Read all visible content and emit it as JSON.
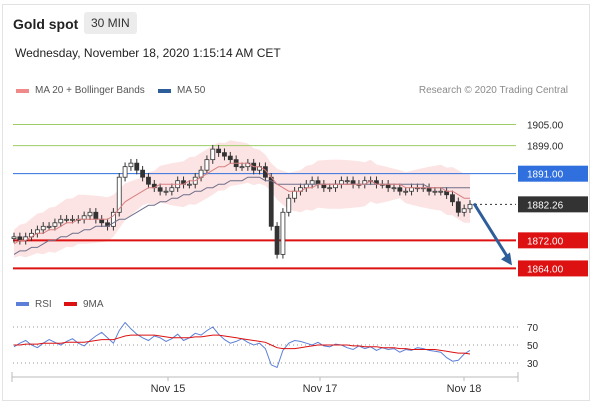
{
  "header": {
    "title": "Gold spot",
    "timeframe": "30 MIN",
    "datetime": "Wednesday, November 18, 2020 1:15:14 AM CET"
  },
  "legend": {
    "items": [
      {
        "label": "MA 20 + Bollinger Bands",
        "color": "#f08a8a"
      },
      {
        "label": "MA 50",
        "color": "#2e5e9a"
      }
    ],
    "credit": "Research © 2020 Trading Central"
  },
  "chart_data": [
    {
      "type": "candlestick",
      "title": "Gold spot",
      "x_tick_labels": [
        "Nov 15",
        "Nov 17",
        "Nov 18"
      ],
      "ylim": [
        1855,
        1912
      ],
      "levels": [
        {
          "value": 1905.0,
          "label": "1905.00",
          "kind": "resistance",
          "color": "#9ccc65"
        },
        {
          "value": 1899.0,
          "label": "1899.00",
          "kind": "resistance",
          "color": "#9ccc65"
        },
        {
          "value": 1891.0,
          "label": "1891.00",
          "kind": "pivot",
          "color": "#2f6fde"
        },
        {
          "value": 1882.26,
          "label": "1882.26",
          "kind": "last-price",
          "color": "#333333"
        },
        {
          "value": 1872.0,
          "label": "1872.00",
          "kind": "support",
          "color": "#dd1111"
        },
        {
          "value": 1864.0,
          "label": "1864.00",
          "kind": "support",
          "color": "#dd1111"
        }
      ],
      "forecast_arrow": {
        "from": 1882.5,
        "to": 1864.0,
        "color": "#2e5e9a"
      },
      "close_series": [
        1873,
        1872,
        1873,
        1874,
        1875,
        1876,
        1876,
        1877,
        1878,
        1878,
        1878,
        1878,
        1879,
        1880,
        1878,
        1877,
        1876,
        1880,
        1890,
        1893,
        1894,
        1892,
        1890,
        1888,
        1887,
        1886,
        1886,
        1887,
        1889,
        1888,
        1888,
        1890,
        1892,
        1895,
        1898,
        1897,
        1896,
        1895,
        1893,
        1893,
        1894,
        1892,
        1893,
        1890,
        1876,
        1868,
        1880,
        1884,
        1886,
        1887,
        1888,
        1889,
        1888,
        1887,
        1887,
        1888,
        1889,
        1889,
        1888,
        1888,
        1889,
        1889,
        1888,
        1888,
        1887,
        1887,
        1886,
        1886,
        1887,
        1887,
        1887,
        1886,
        1886,
        1886,
        1885,
        1883,
        1880,
        1881,
        1882.26
      ],
      "ma20_series": [
        1871,
        1872,
        1872,
        1873,
        1874,
        1874,
        1875,
        1875,
        1876,
        1877,
        1877,
        1878,
        1878,
        1878,
        1878,
        1878,
        1878,
        1879,
        1881,
        1883,
        1884,
        1885,
        1886,
        1887,
        1887,
        1888,
        1888,
        1888,
        1888,
        1888,
        1889,
        1889,
        1890,
        1891,
        1892,
        1893,
        1893,
        1894,
        1894,
        1894,
        1894,
        1893,
        1893,
        1892,
        1890,
        1888,
        1887,
        1886,
        1886,
        1886,
        1887,
        1887,
        1888,
        1888,
        1888,
        1888,
        1888,
        1888,
        1888,
        1888,
        1888,
        1889,
        1888,
        1888,
        1888,
        1888,
        1888,
        1887,
        1887,
        1887,
        1887,
        1887,
        1887,
        1887,
        1886,
        1886,
        1885,
        1884,
        1884
      ],
      "ma50_series": [
        1868,
        1869,
        1869,
        1870,
        1870,
        1871,
        1872,
        1872,
        1873,
        1873,
        1874,
        1874,
        1875,
        1875,
        1876,
        1876,
        1876,
        1877,
        1878,
        1878,
        1879,
        1880,
        1881,
        1882,
        1882,
        1883,
        1883,
        1884,
        1884,
        1885,
        1885,
        1886,
        1886,
        1887,
        1887,
        1888,
        1888,
        1889,
        1889,
        1889,
        1890,
        1890,
        1890,
        1889,
        1889,
        1888,
        1888,
        1888,
        1888,
        1888,
        1888,
        1888,
        1888,
        1888,
        1888,
        1888,
        1888,
        1888,
        1888,
        1888,
        1888,
        1888,
        1888,
        1888,
        1888,
        1888,
        1888,
        1888,
        1888,
        1888,
        1888,
        1887,
        1887,
        1887,
        1887,
        1887,
        1887,
        1887,
        1887
      ]
    },
    {
      "type": "line",
      "series": [
        {
          "name": "RSI",
          "color": "#5b7fd6",
          "values": [
            48,
            52,
            55,
            50,
            47,
            52,
            56,
            53,
            50,
            54,
            57,
            52,
            49,
            55,
            60,
            64,
            58,
            52,
            66,
            75,
            68,
            62,
            58,
            55,
            60,
            58,
            54,
            57,
            62,
            55,
            58,
            63,
            61,
            66,
            70,
            62,
            56,
            52,
            54,
            57,
            53,
            50,
            52,
            46,
            28,
            25,
            44,
            52,
            55,
            54,
            52,
            50,
            53,
            49,
            48,
            51,
            50,
            47,
            45,
            49,
            46,
            48,
            44,
            47,
            45,
            46,
            42,
            45,
            44,
            47,
            46,
            44,
            43,
            42,
            36,
            32,
            33,
            40,
            44
          ]
        },
        {
          "name": "9MA",
          "color": "#dd1111",
          "values": [
            50,
            50,
            51,
            51,
            51,
            52,
            52,
            52,
            52,
            53,
            53,
            53,
            53,
            54,
            55,
            56,
            56,
            56,
            58,
            60,
            61,
            61,
            61,
            61,
            61,
            60,
            59,
            58,
            58,
            58,
            58,
            59,
            59,
            60,
            61,
            61,
            60,
            59,
            58,
            57,
            56,
            55,
            54,
            53,
            50,
            47,
            46,
            46,
            46,
            47,
            48,
            49,
            50,
            50,
            50,
            50,
            50,
            50,
            49,
            49,
            48,
            48,
            48,
            47,
            47,
            47,
            46,
            46,
            45,
            45,
            45,
            45,
            45,
            44,
            43,
            42,
            41,
            41,
            40
          ]
        }
      ],
      "ylim": [
        20,
        80
      ],
      "reference_lines": [
        70,
        50,
        30
      ],
      "y_tick_labels": [
        "70",
        "50",
        "30"
      ]
    }
  ]
}
